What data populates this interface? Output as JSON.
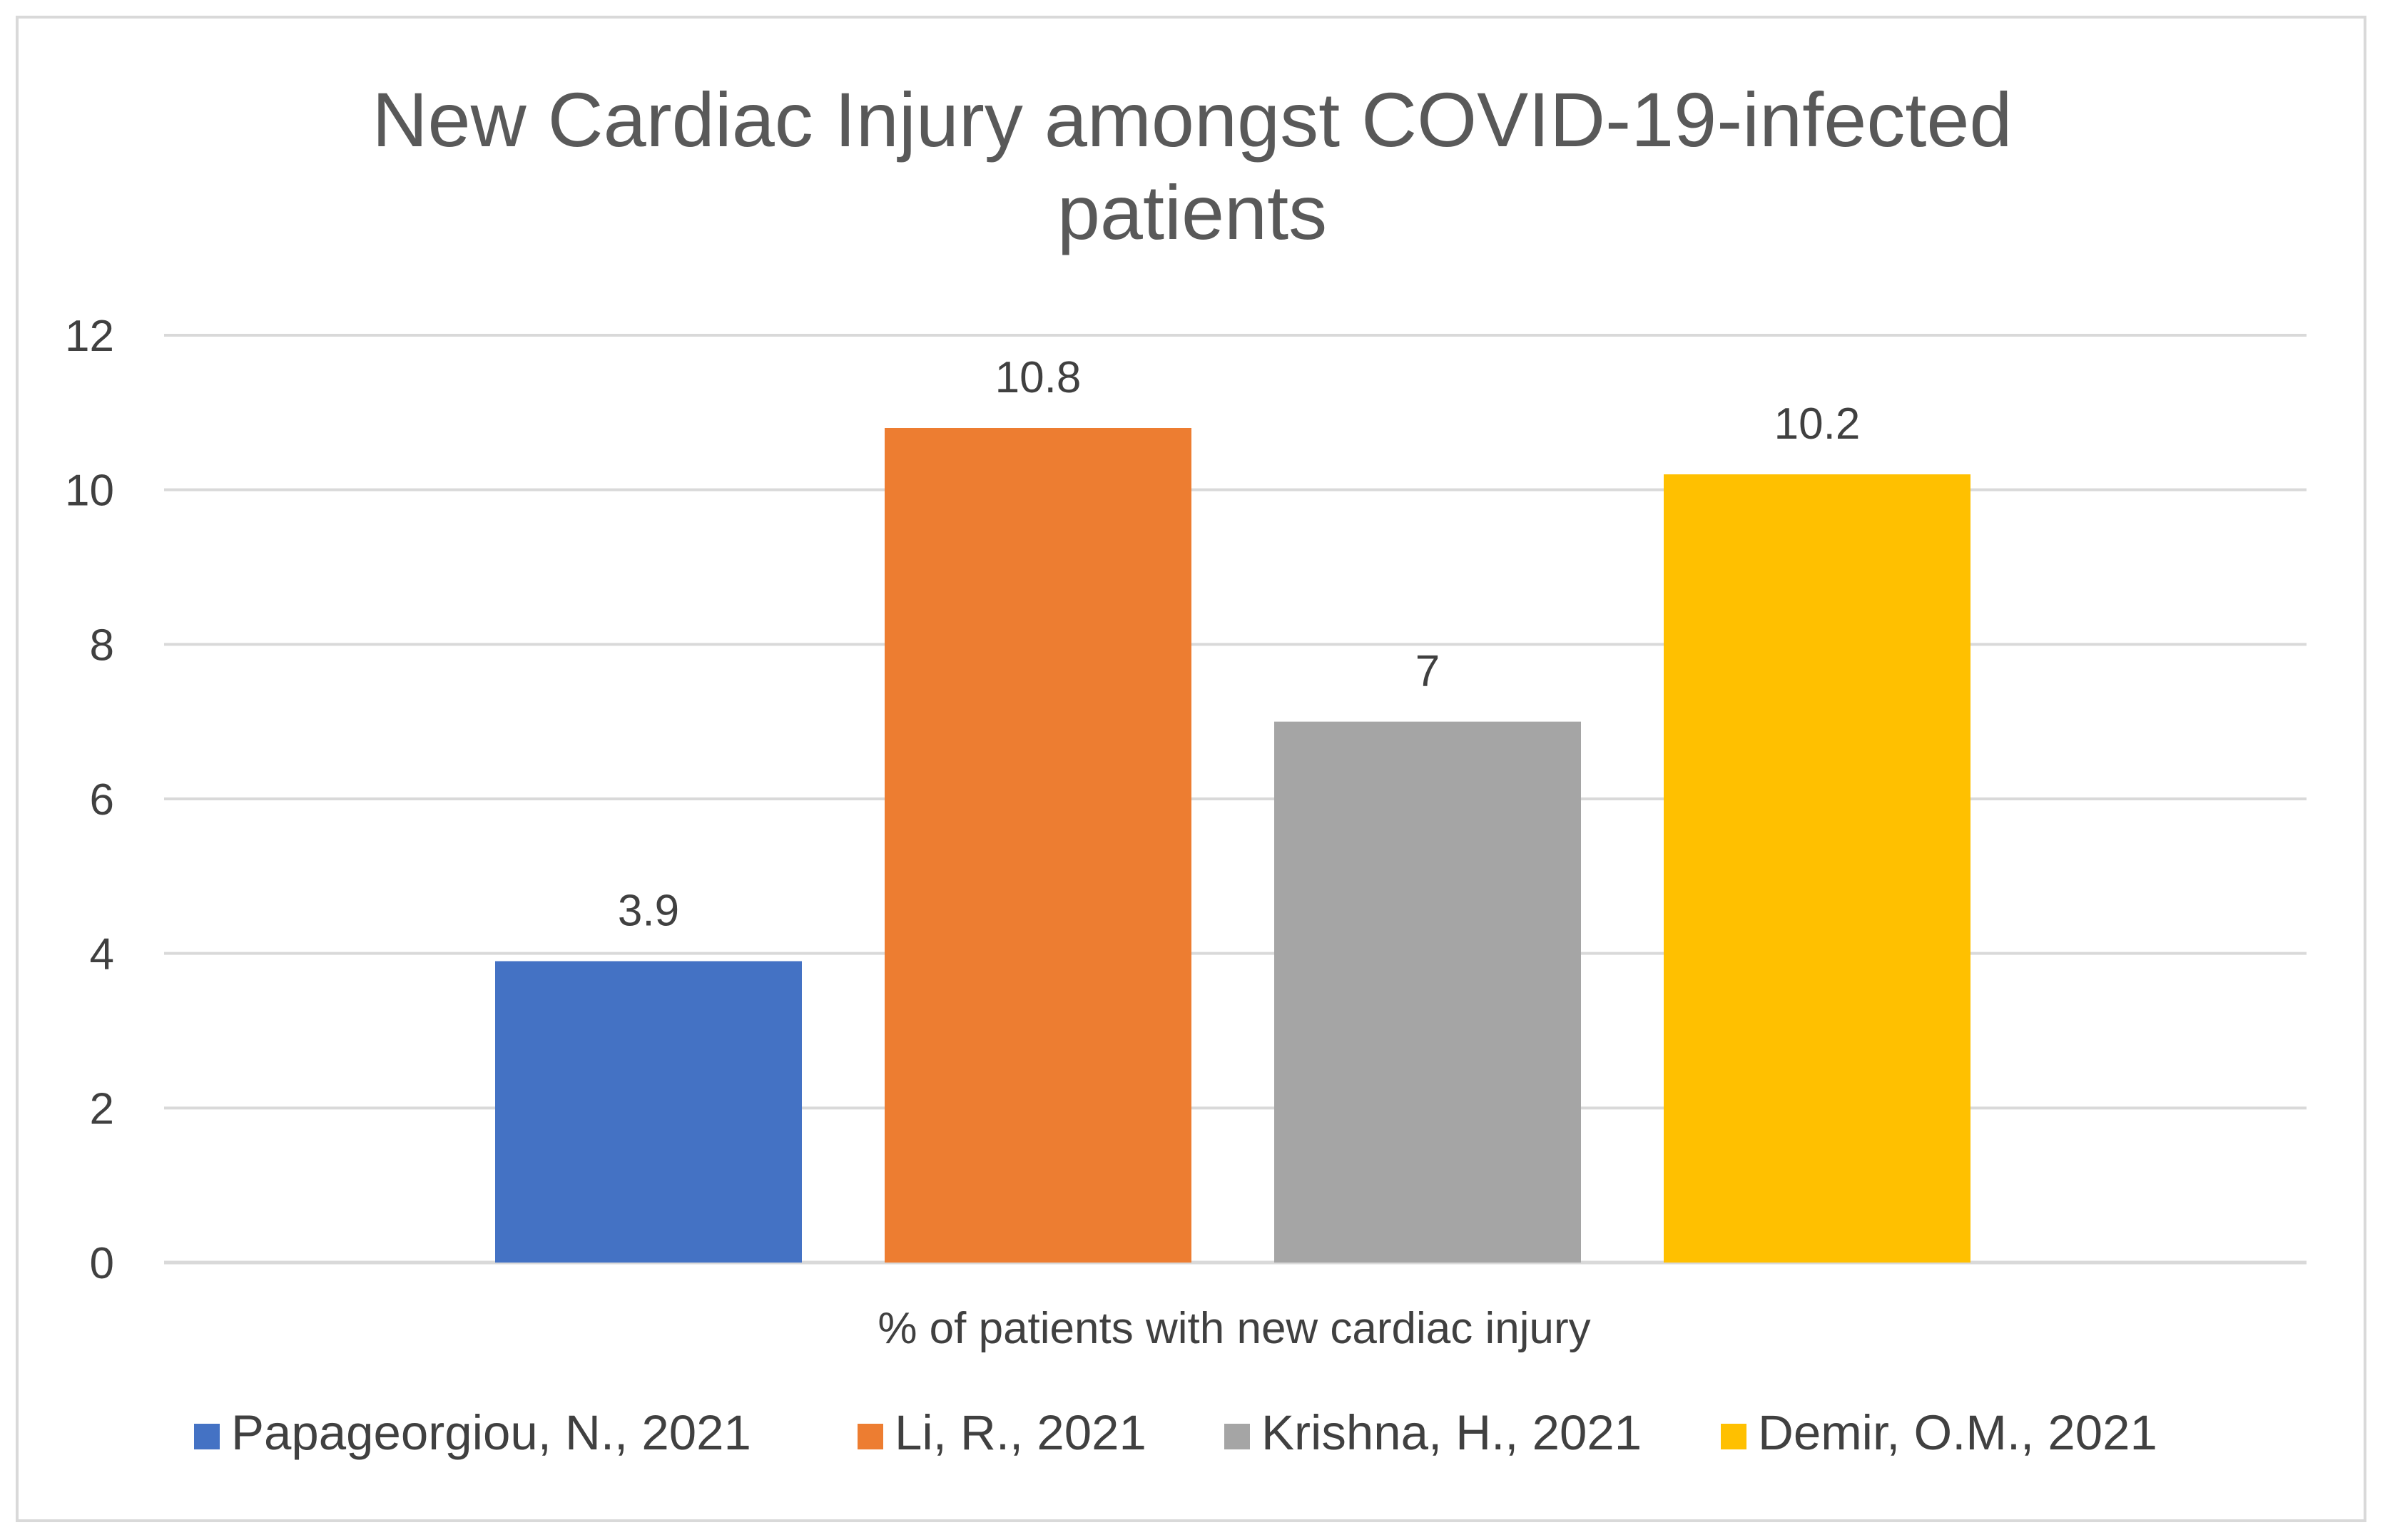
{
  "chart_data": {
    "type": "bar",
    "title_lines": [
      "New Cardiac Injury amongst COVID-19-infected",
      "patients"
    ],
    "xlabel": "% of patients with new cardiac injury",
    "ylabel": "",
    "ylim": [
      0,
      12
    ],
    "yticks": [
      0,
      2,
      4,
      6,
      8,
      10,
      12
    ],
    "grid": true,
    "legend_position": "bottom",
    "categories": [
      "% of patients with new cardiac injury"
    ],
    "series": [
      {
        "name": "Papageorgiou, N., 2021",
        "values": [
          3.9
        ],
        "label": "3.9",
        "color": "#4472c4"
      },
      {
        "name": "Li, R., 2021",
        "values": [
          10.8
        ],
        "label": "10.8",
        "color": "#ed7d31"
      },
      {
        "name": "Krishna, H., 2021",
        "values": [
          7
        ],
        "label": "7",
        "color": "#a5a5a5"
      },
      {
        "name": "Demir, O.M., 2021",
        "values": [
          10.2
        ],
        "label": "10.2",
        "color": "#ffc000"
      }
    ]
  }
}
